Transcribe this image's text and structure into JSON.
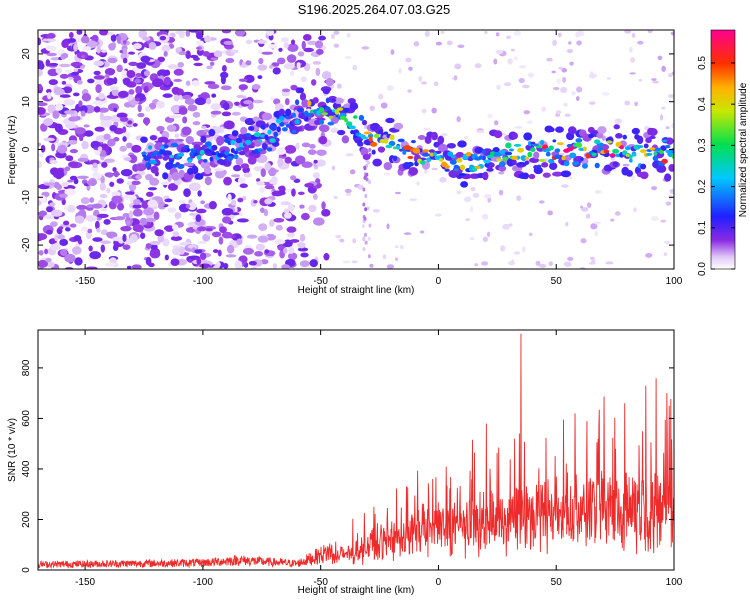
{
  "title": "S196.2025.264.07.03.G25",
  "colors": {
    "line": "#ee2a2a",
    "axis": "#000000"
  },
  "chart_data": [
    {
      "type": "heatmap",
      "xlabel": "Height of straight line (km)",
      "ylabel": "Frequency (Hz)",
      "xlim": [
        -170,
        100
      ],
      "ylim": [
        -25,
        25
      ],
      "xticks": [
        -150,
        -100,
        -50,
        0,
        50,
        100
      ],
      "yticks": [
        -20,
        -10,
        0,
        10,
        20
      ],
      "colorbar": {
        "label": "Normalized spectral amplitude",
        "range": [
          0,
          0.58
        ],
        "ticks": [
          "0.0",
          "0.1",
          "0.2",
          "0.3",
          "0.4",
          "0.5"
        ],
        "colormap": "rainbow (white-violet-blue-cyan-green-yellow-orange-red-magenta)"
      },
      "regions": [
        {
          "x_range": [
            -170,
            -50
          ],
          "freq_range": [
            -25,
            25
          ],
          "level": "0.02-0.08 noise"
        },
        {
          "x_range": [
            -120,
            -55
          ],
          "freq_range": [
            -5,
            5
          ],
          "level": "0.05-0.2"
        },
        {
          "x_range": [
            -55,
            -30
          ],
          "freq_range": [
            -2,
            12
          ],
          "level": "0.1-0.3"
        },
        {
          "x_range": [
            -30,
            100
          ],
          "freq_range": [
            -6,
            6
          ],
          "level": "0.1-0.58"
        }
      ],
      "ridge": [
        {
          "x": -120,
          "f": -1
        },
        {
          "x": -90,
          "f": -0.5
        },
        {
          "x": -75,
          "f": 2
        },
        {
          "x": -55,
          "f": 9
        },
        {
          "x": -40,
          "f": 7
        },
        {
          "x": -30,
          "f": 3
        },
        {
          "x": -10,
          "f": -1
        },
        {
          "x": 10,
          "f": -3
        },
        {
          "x": 25,
          "f": -1
        },
        {
          "x": 50,
          "f": -0.5
        },
        {
          "x": 75,
          "f": 0
        },
        {
          "x": 100,
          "f": -1
        }
      ]
    },
    {
      "type": "line",
      "xlabel": "Height of straight line (km)",
      "ylabel": "SNR (10 * v/v)",
      "xlim": [
        -170,
        100
      ],
      "ylim": [
        0,
        950
      ],
      "xticks": [
        -150,
        -100,
        -50,
        0,
        50,
        100
      ],
      "yticks": [
        0,
        200,
        400,
        600,
        800
      ],
      "envelope": [
        {
          "x": -170,
          "base": 15,
          "peak": 35
        },
        {
          "x": -100,
          "base": 20,
          "peak": 45
        },
        {
          "x": -85,
          "base": 30,
          "peak": 60
        },
        {
          "x": -60,
          "base": 18,
          "peak": 40
        },
        {
          "x": -40,
          "base": 60,
          "peak": 150
        },
        {
          "x": -20,
          "base": 130,
          "peak": 300
        },
        {
          "x": 0,
          "base": 180,
          "peak": 420
        },
        {
          "x": 20,
          "base": 200,
          "peak": 500
        },
        {
          "x": 40,
          "base": 220,
          "peak": 560
        },
        {
          "x": 60,
          "base": 230,
          "peak": 600
        },
        {
          "x": 80,
          "base": 240,
          "peak": 650
        },
        {
          "x": 100,
          "base": 250,
          "peak": 680
        }
      ],
      "max_point": {
        "x": 35,
        "y": 935
      },
      "notable_peaks": [
        {
          "x": 88,
          "y": 730
        },
        {
          "x": 97,
          "y": 700
        },
        {
          "x": 79,
          "y": 660
        },
        {
          "x": 58,
          "y": 620
        },
        {
          "x": 98,
          "y": 650
        }
      ]
    }
  ]
}
